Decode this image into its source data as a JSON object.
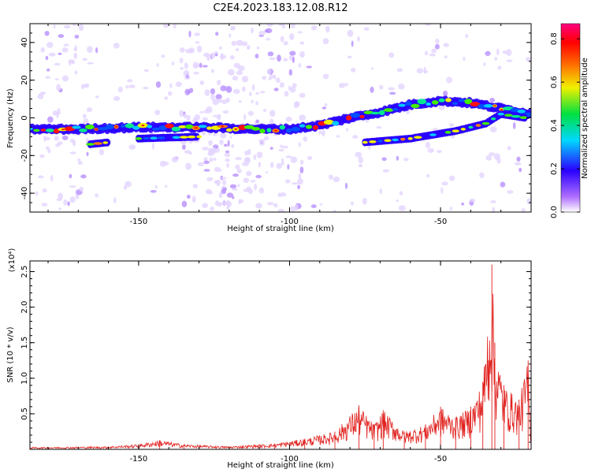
{
  "title": "C2E4.2023.183.12.08.R12",
  "chart_data": [
    {
      "type": "heatmap",
      "xlabel": "Height of straight line (km)",
      "ylabel": "Frequency (Hz)",
      "xlim": [
        -186,
        -20
      ],
      "ylim": [
        -50,
        50
      ],
      "xticks": [
        -150,
        -100,
        -50
      ],
      "yticks": [
        -40,
        -20,
        0,
        20,
        40
      ],
      "colorbar": {
        "label": "Normalized spectral amplitude",
        "range": [
          0,
          0.87
        ],
        "ticks": [
          0.0,
          0.2,
          0.4,
          0.6,
          0.8
        ]
      },
      "main_ridge": [
        {
          "x": -186,
          "y": -6
        },
        {
          "x": -170,
          "y": -6
        },
        {
          "x": -150,
          "y": -5
        },
        {
          "x": -130,
          "y": -5
        },
        {
          "x": -110,
          "y": -6
        },
        {
          "x": -100,
          "y": -6
        },
        {
          "x": -90,
          "y": -4
        },
        {
          "x": -80,
          "y": 0
        },
        {
          "x": -70,
          "y": 3
        },
        {
          "x": -60,
          "y": 7
        },
        {
          "x": -50,
          "y": 9
        },
        {
          "x": -40,
          "y": 8
        },
        {
          "x": -30,
          "y": 5
        },
        {
          "x": -20,
          "y": 2
        }
      ],
      "secondary_branches": [
        [
          {
            "x": -166,
            "y": -14
          },
          {
            "x": -160,
            "y": -13
          }
        ],
        [
          {
            "x": -150,
            "y": -11
          },
          {
            "x": -130,
            "y": -10
          }
        ],
        [
          {
            "x": -75,
            "y": -13
          },
          {
            "x": -60,
            "y": -11
          },
          {
            "x": -45,
            "y": -7
          },
          {
            "x": -35,
            "y": -3
          },
          {
            "x": -30,
            "y": 2
          },
          {
            "x": -22,
            "y": 0
          }
        ]
      ],
      "noise_columns_x": [
        -175,
        -128,
        -103,
        -120
      ]
    },
    {
      "type": "line",
      "xlabel": "Height of straight line (km)",
      "ylabel": "SNR (10 * v/v)",
      "y_multiplier": "(x10⁴)",
      "xlim": [
        -186,
        -20
      ],
      "ylim": [
        0,
        2.65
      ],
      "xticks": [
        -150,
        -100,
        -50
      ],
      "yticks": [
        0.5,
        1.0,
        1.5,
        2.0,
        2.5
      ],
      "series": [
        {
          "color": "#e0211e",
          "envelope": [
            {
              "x": -186,
              "y": 0.03
            },
            {
              "x": -160,
              "y": 0.04
            },
            {
              "x": -150,
              "y": 0.07
            },
            {
              "x": -143,
              "y": 0.13
            },
            {
              "x": -135,
              "y": 0.07
            },
            {
              "x": -120,
              "y": 0.04
            },
            {
              "x": -105,
              "y": 0.08
            },
            {
              "x": -95,
              "y": 0.15
            },
            {
              "x": -85,
              "y": 0.25
            },
            {
              "x": -77,
              "y": 0.62
            },
            {
              "x": -72,
              "y": 0.35
            },
            {
              "x": -69,
              "y": 0.55
            },
            {
              "x": -62,
              "y": 0.25
            },
            {
              "x": -55,
              "y": 0.35
            },
            {
              "x": -50,
              "y": 0.6
            },
            {
              "x": -45,
              "y": 0.45
            },
            {
              "x": -40,
              "y": 0.6
            },
            {
              "x": -36,
              "y": 0.95
            },
            {
              "x": -33,
              "y": 2.6
            },
            {
              "x": -32,
              "y": 1.5
            },
            {
              "x": -29,
              "y": 0.9
            },
            {
              "x": -24,
              "y": 0.7
            },
            {
              "x": -21,
              "y": 1.25
            },
            {
              "x": -20,
              "y": 0.15
            }
          ]
        }
      ]
    }
  ]
}
